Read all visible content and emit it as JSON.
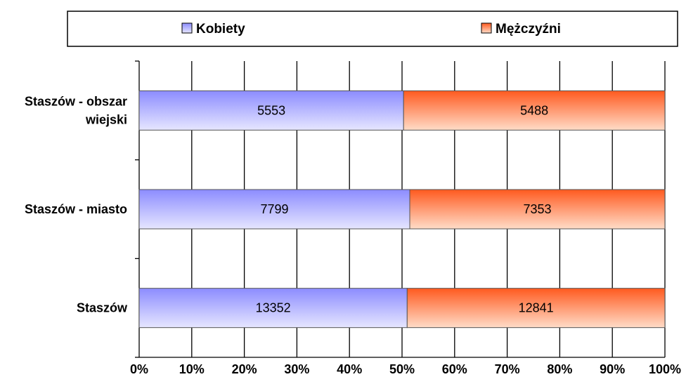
{
  "chart_data": {
    "type": "bar",
    "orientation": "horizontal",
    "stacked": "percent",
    "categories": [
      "Staszów - obszar wiejski",
      "Staszów - miasto",
      "Staszów"
    ],
    "category_lines": [
      [
        "Staszów - obszar",
        "wiejski"
      ],
      [
        "Staszów - miasto"
      ],
      [
        "Staszów"
      ]
    ],
    "series": [
      {
        "name": "Kobiety",
        "values": [
          5553,
          7799,
          13352
        ],
        "color": "#9999ff"
      },
      {
        "name": "Mężczyźni",
        "values": [
          5488,
          7353,
          12841
        ],
        "color": "#ff6633"
      }
    ],
    "xlim": [
      0,
      100
    ],
    "xticks": [
      "0%",
      "10%",
      "20%",
      "30%",
      "40%",
      "50%",
      "60%",
      "70%",
      "80%",
      "90%",
      "100%"
    ],
    "grid": true,
    "legend_position": "top"
  }
}
